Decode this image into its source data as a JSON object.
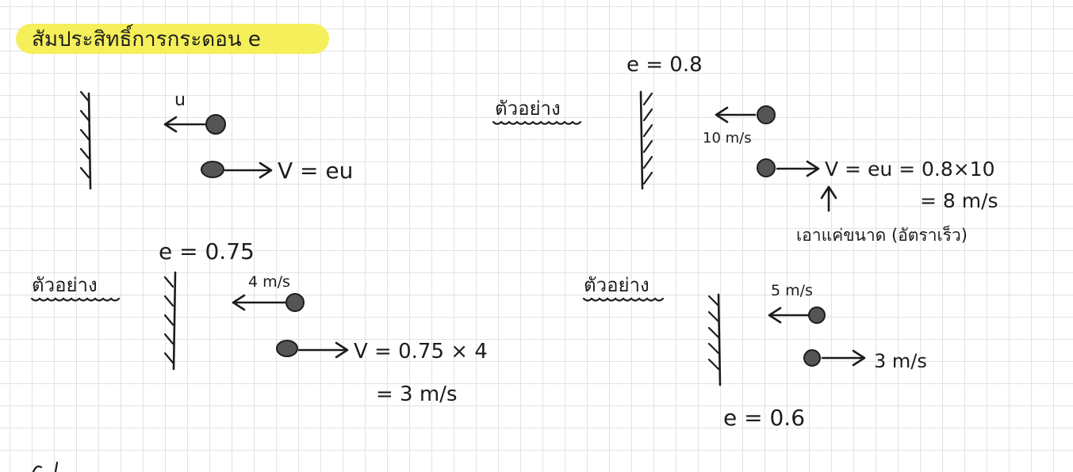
{
  "header": {
    "title": "สัมประสิทธิ์การกระดอน e"
  },
  "diagram_general": {
    "u_label": "u",
    "v_label": "V = eu"
  },
  "example_1": {
    "heading": "ตัวอย่าง",
    "e_value": "e = 0.8",
    "u_label": "10 m/s",
    "v_line1": "V = eu = 0.8×10",
    "v_line2": "= 8 m/s",
    "note": "เอาแค่ขนาด (อัตราเร็ว)"
  },
  "example_2": {
    "heading": "ตัวอย่าง",
    "e_value": "e = 0.75",
    "u_label": "4 m/s",
    "v_line1": "V = 0.75 × 4",
    "v_line2": "= 3 m/s"
  },
  "example_3": {
    "heading": "ตัวอย่าง",
    "u_label": "5 m/s",
    "v_label": "3 m/s",
    "e_value": "e = 0.6"
  },
  "colors": {
    "highlight": "#f4ef5a",
    "ink": "#1c1c1c",
    "grid": "#e2e2e2"
  }
}
